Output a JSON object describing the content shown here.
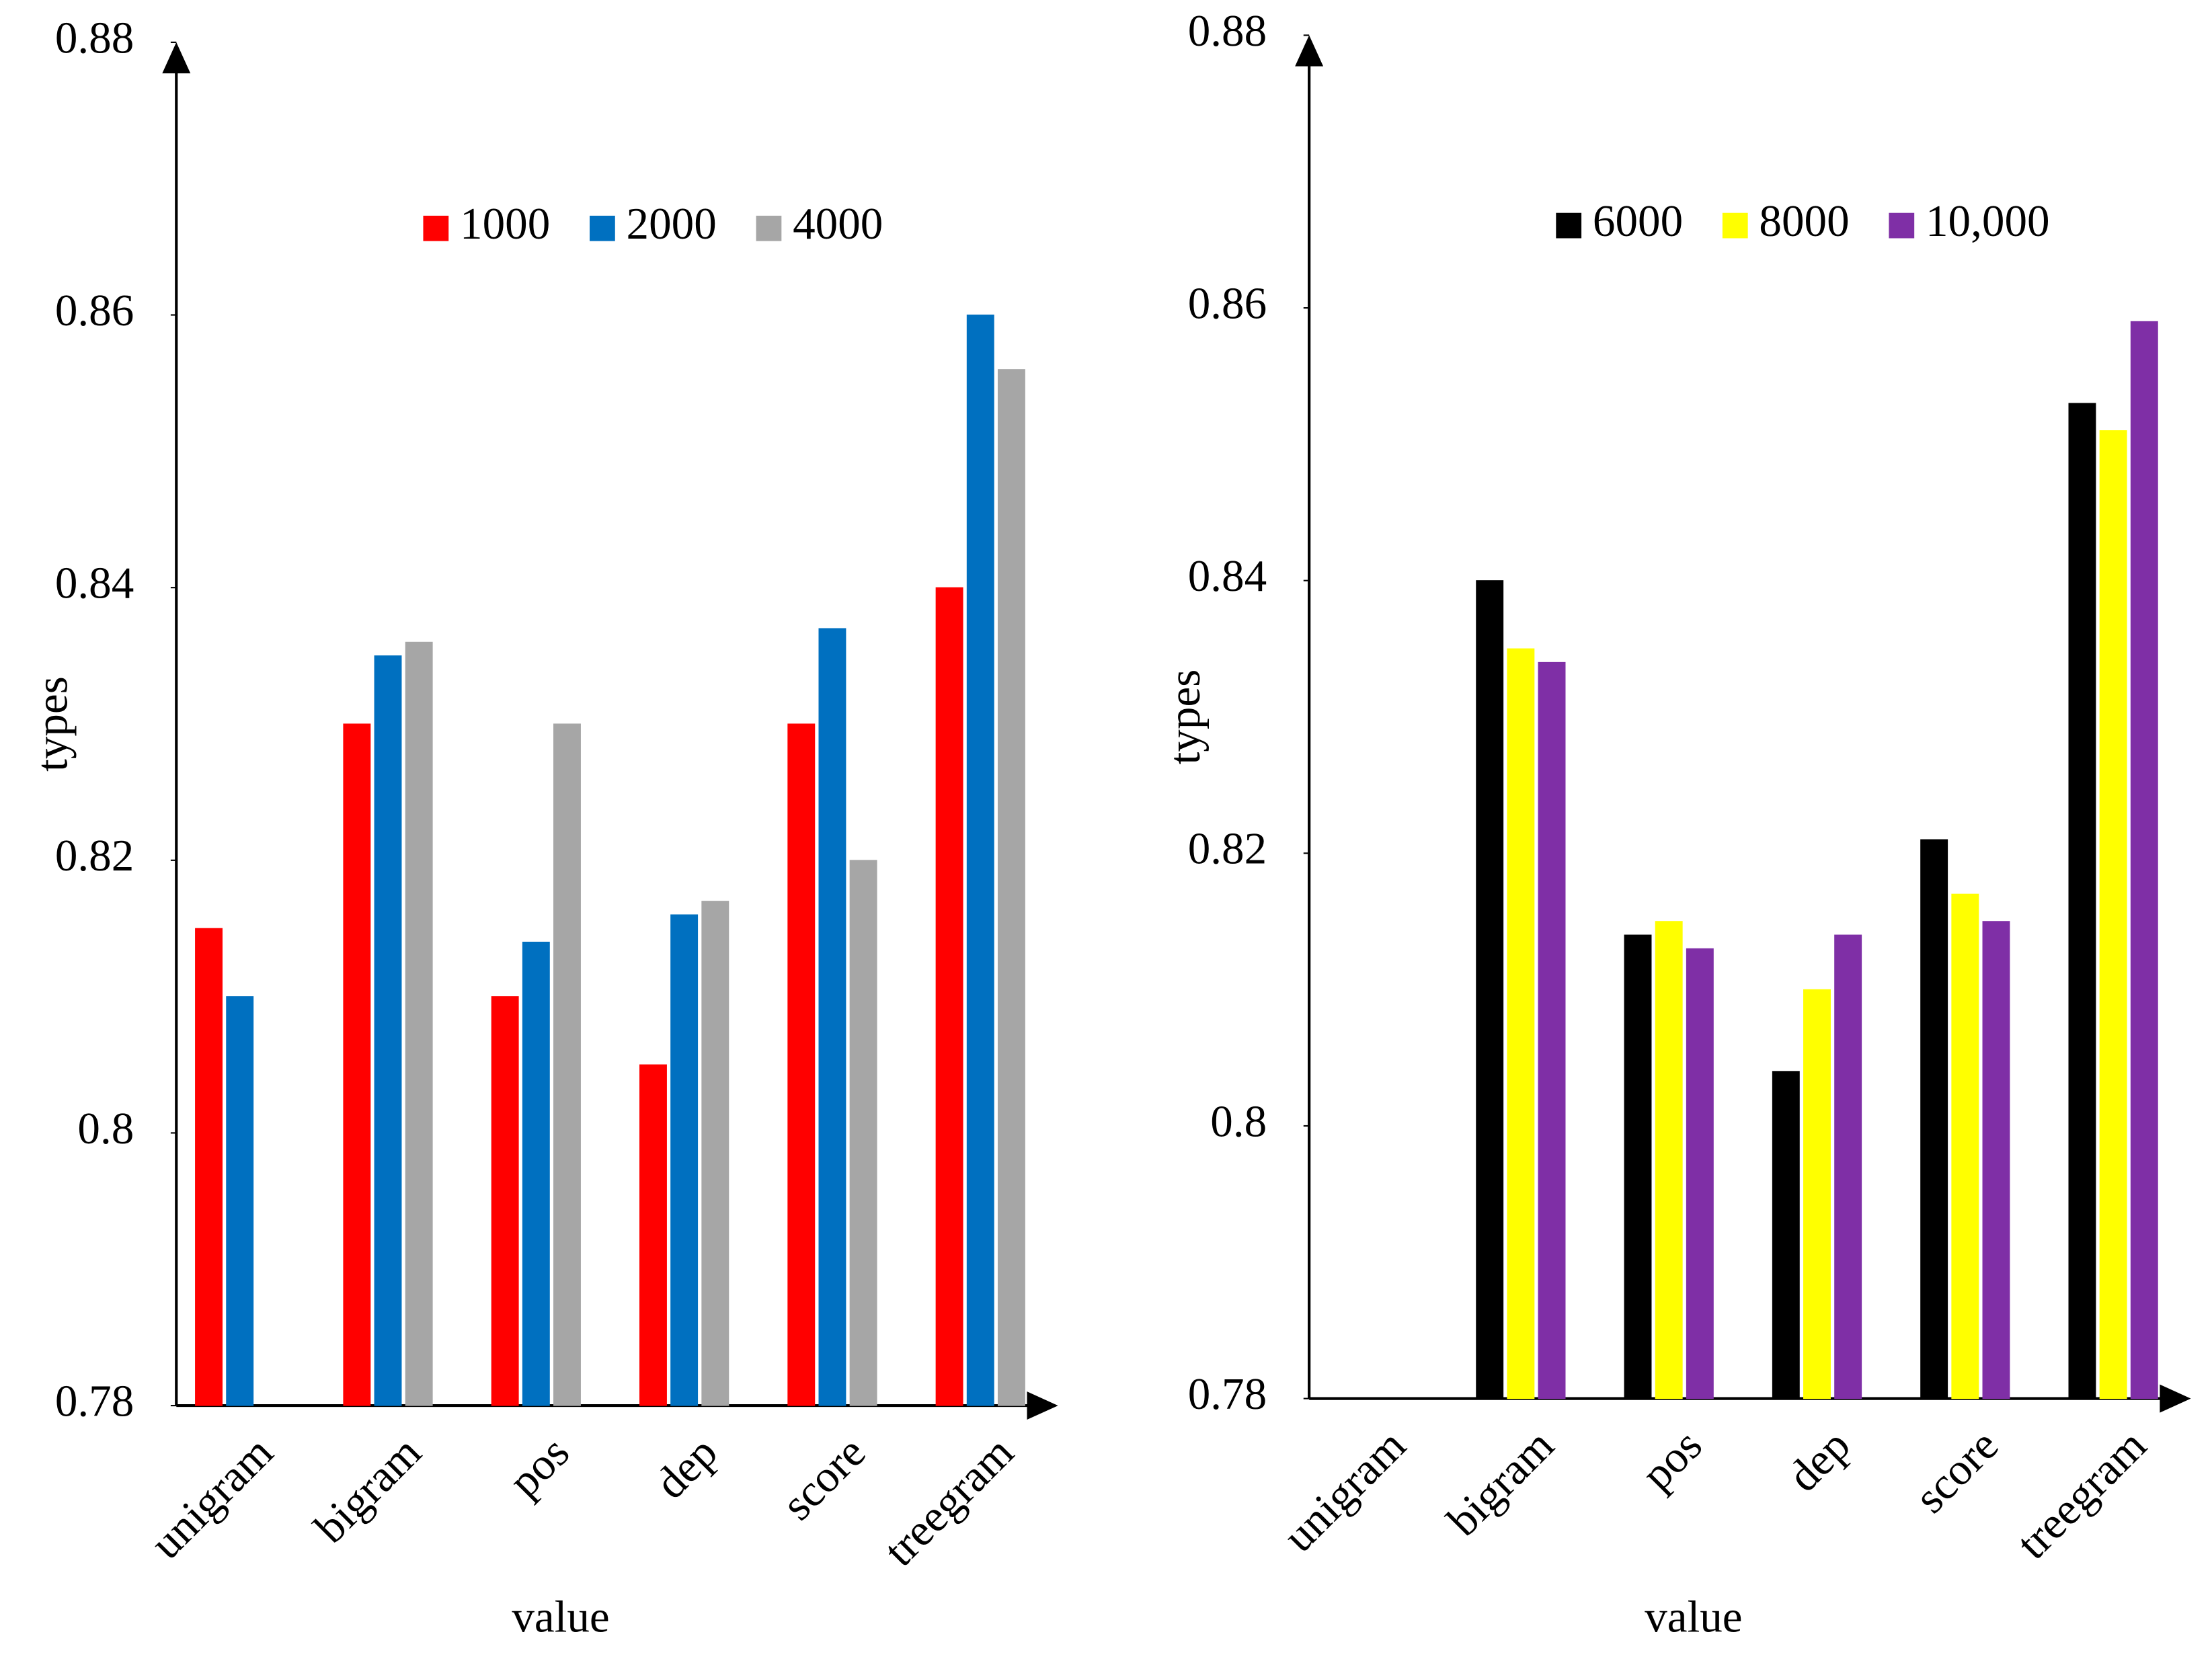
{
  "chart_data": [
    {
      "type": "bar",
      "ylabel": "types",
      "xlabel": "value",
      "categories": [
        "unigram",
        "bigram",
        "pos",
        "dep",
        "score",
        "treegram"
      ],
      "series": [
        {
          "name": "1000",
          "color": "#ff0000",
          "values": [
            0.815,
            0.83,
            0.81,
            0.805,
            0.83,
            0.84
          ]
        },
        {
          "name": "2000",
          "color": "#0070c0",
          "values": [
            0.81,
            0.835,
            0.814,
            0.816,
            0.837,
            0.86
          ]
        },
        {
          "name": "4000",
          "color": "#a6a6a6",
          "values": [
            0.78,
            0.836,
            0.83,
            0.817,
            0.82,
            0.856
          ]
        }
      ],
      "ylim": [
        0.78,
        0.88
      ],
      "yticks": [
        0.78,
        0.8,
        0.82,
        0.84,
        0.86,
        0.88
      ],
      "legend": "top"
    },
    {
      "type": "bar",
      "ylabel": "types",
      "xlabel": "value",
      "categories": [
        "unigram",
        "bigram",
        "pos",
        "dep",
        "score",
        "treegram"
      ],
      "series": [
        {
          "name": "6000",
          "color": "#000000",
          "values": [
            0.78,
            0.84,
            0.814,
            0.804,
            0.821,
            0.853
          ]
        },
        {
          "name": "8000",
          "color": "#ffff00",
          "values": [
            0.78,
            0.835,
            0.815,
            0.81,
            0.817,
            0.851
          ]
        },
        {
          "name": "10,000",
          "color": "#7f2fa6",
          "values": [
            0.78,
            0.834,
            0.813,
            0.814,
            0.815,
            0.859
          ]
        }
      ],
      "ylim": [
        0.78,
        0.88
      ],
      "yticks": [
        0.78,
        0.8,
        0.82,
        0.84,
        0.86,
        0.88
      ],
      "legend": "top"
    }
  ]
}
